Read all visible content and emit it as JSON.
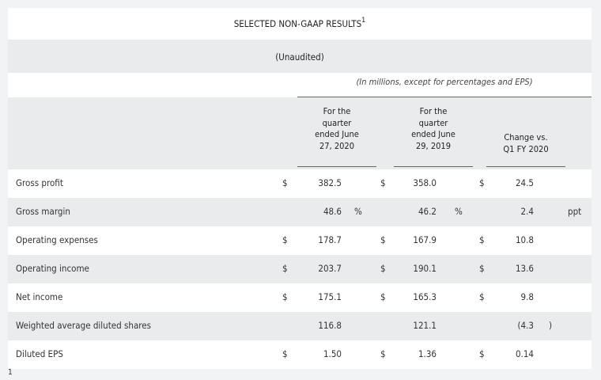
{
  "header": {
    "title": "SELECTED NON-GAAP RESULTS",
    "title_sup": "1",
    "unaudited": "(Unaudited)",
    "subtitle": "(In millions, except for percentages and EPS)"
  },
  "columns": {
    "q_2020": [
      "For the",
      "quarter",
      "ended June",
      "27, 2020"
    ],
    "q_2019": [
      "For the",
      "quarter",
      "ended June",
      "29, 2019"
    ],
    "change": [
      "Change vs.",
      "Q1 FY 2020"
    ]
  },
  "rows": [
    {
      "label": "Gross profit",
      "d1": "$",
      "v1": "382.5",
      "p1": "",
      "d2": "$",
      "v2": "358.0",
      "p2": "",
      "d3": "$",
      "v3": "24.5",
      "s3": ""
    },
    {
      "label": "Gross margin",
      "d1": "",
      "v1": "48.6",
      "p1": "%",
      "d2": "",
      "v2": "46.2",
      "p2": "%",
      "d3": "",
      "v3": "2.4",
      "s3": "ppt"
    },
    {
      "label": "Operating expenses",
      "d1": "$",
      "v1": "178.7",
      "p1": "",
      "d2": "$",
      "v2": "167.9",
      "p2": "",
      "d3": "$",
      "v3": "10.8",
      "s3": ""
    },
    {
      "label": "Operating income",
      "d1": "$",
      "v1": "203.7",
      "p1": "",
      "d2": "$",
      "v2": "190.1",
      "p2": "",
      "d3": "$",
      "v3": "13.6",
      "s3": ""
    },
    {
      "label": "Net income",
      "d1": "$",
      "v1": "175.1",
      "p1": "",
      "d2": "$",
      "v2": "165.3",
      "p2": "",
      "d3": "$",
      "v3": "9.8",
      "s3": ""
    },
    {
      "label": "Weighted average diluted shares",
      "d1": "",
      "v1": "116.8",
      "p1": "",
      "d2": "",
      "v2": "121.1",
      "p2": "",
      "d3": "",
      "v3": "(4.3",
      "s3": ")"
    },
    {
      "label": "Diluted EPS",
      "d1": "$",
      "v1": "1.50",
      "p1": "",
      "d2": "$",
      "v2": "1.36",
      "p2": "",
      "d3": "$",
      "v3": "0.14",
      "s3": ""
    }
  ],
  "footnote": "1"
}
